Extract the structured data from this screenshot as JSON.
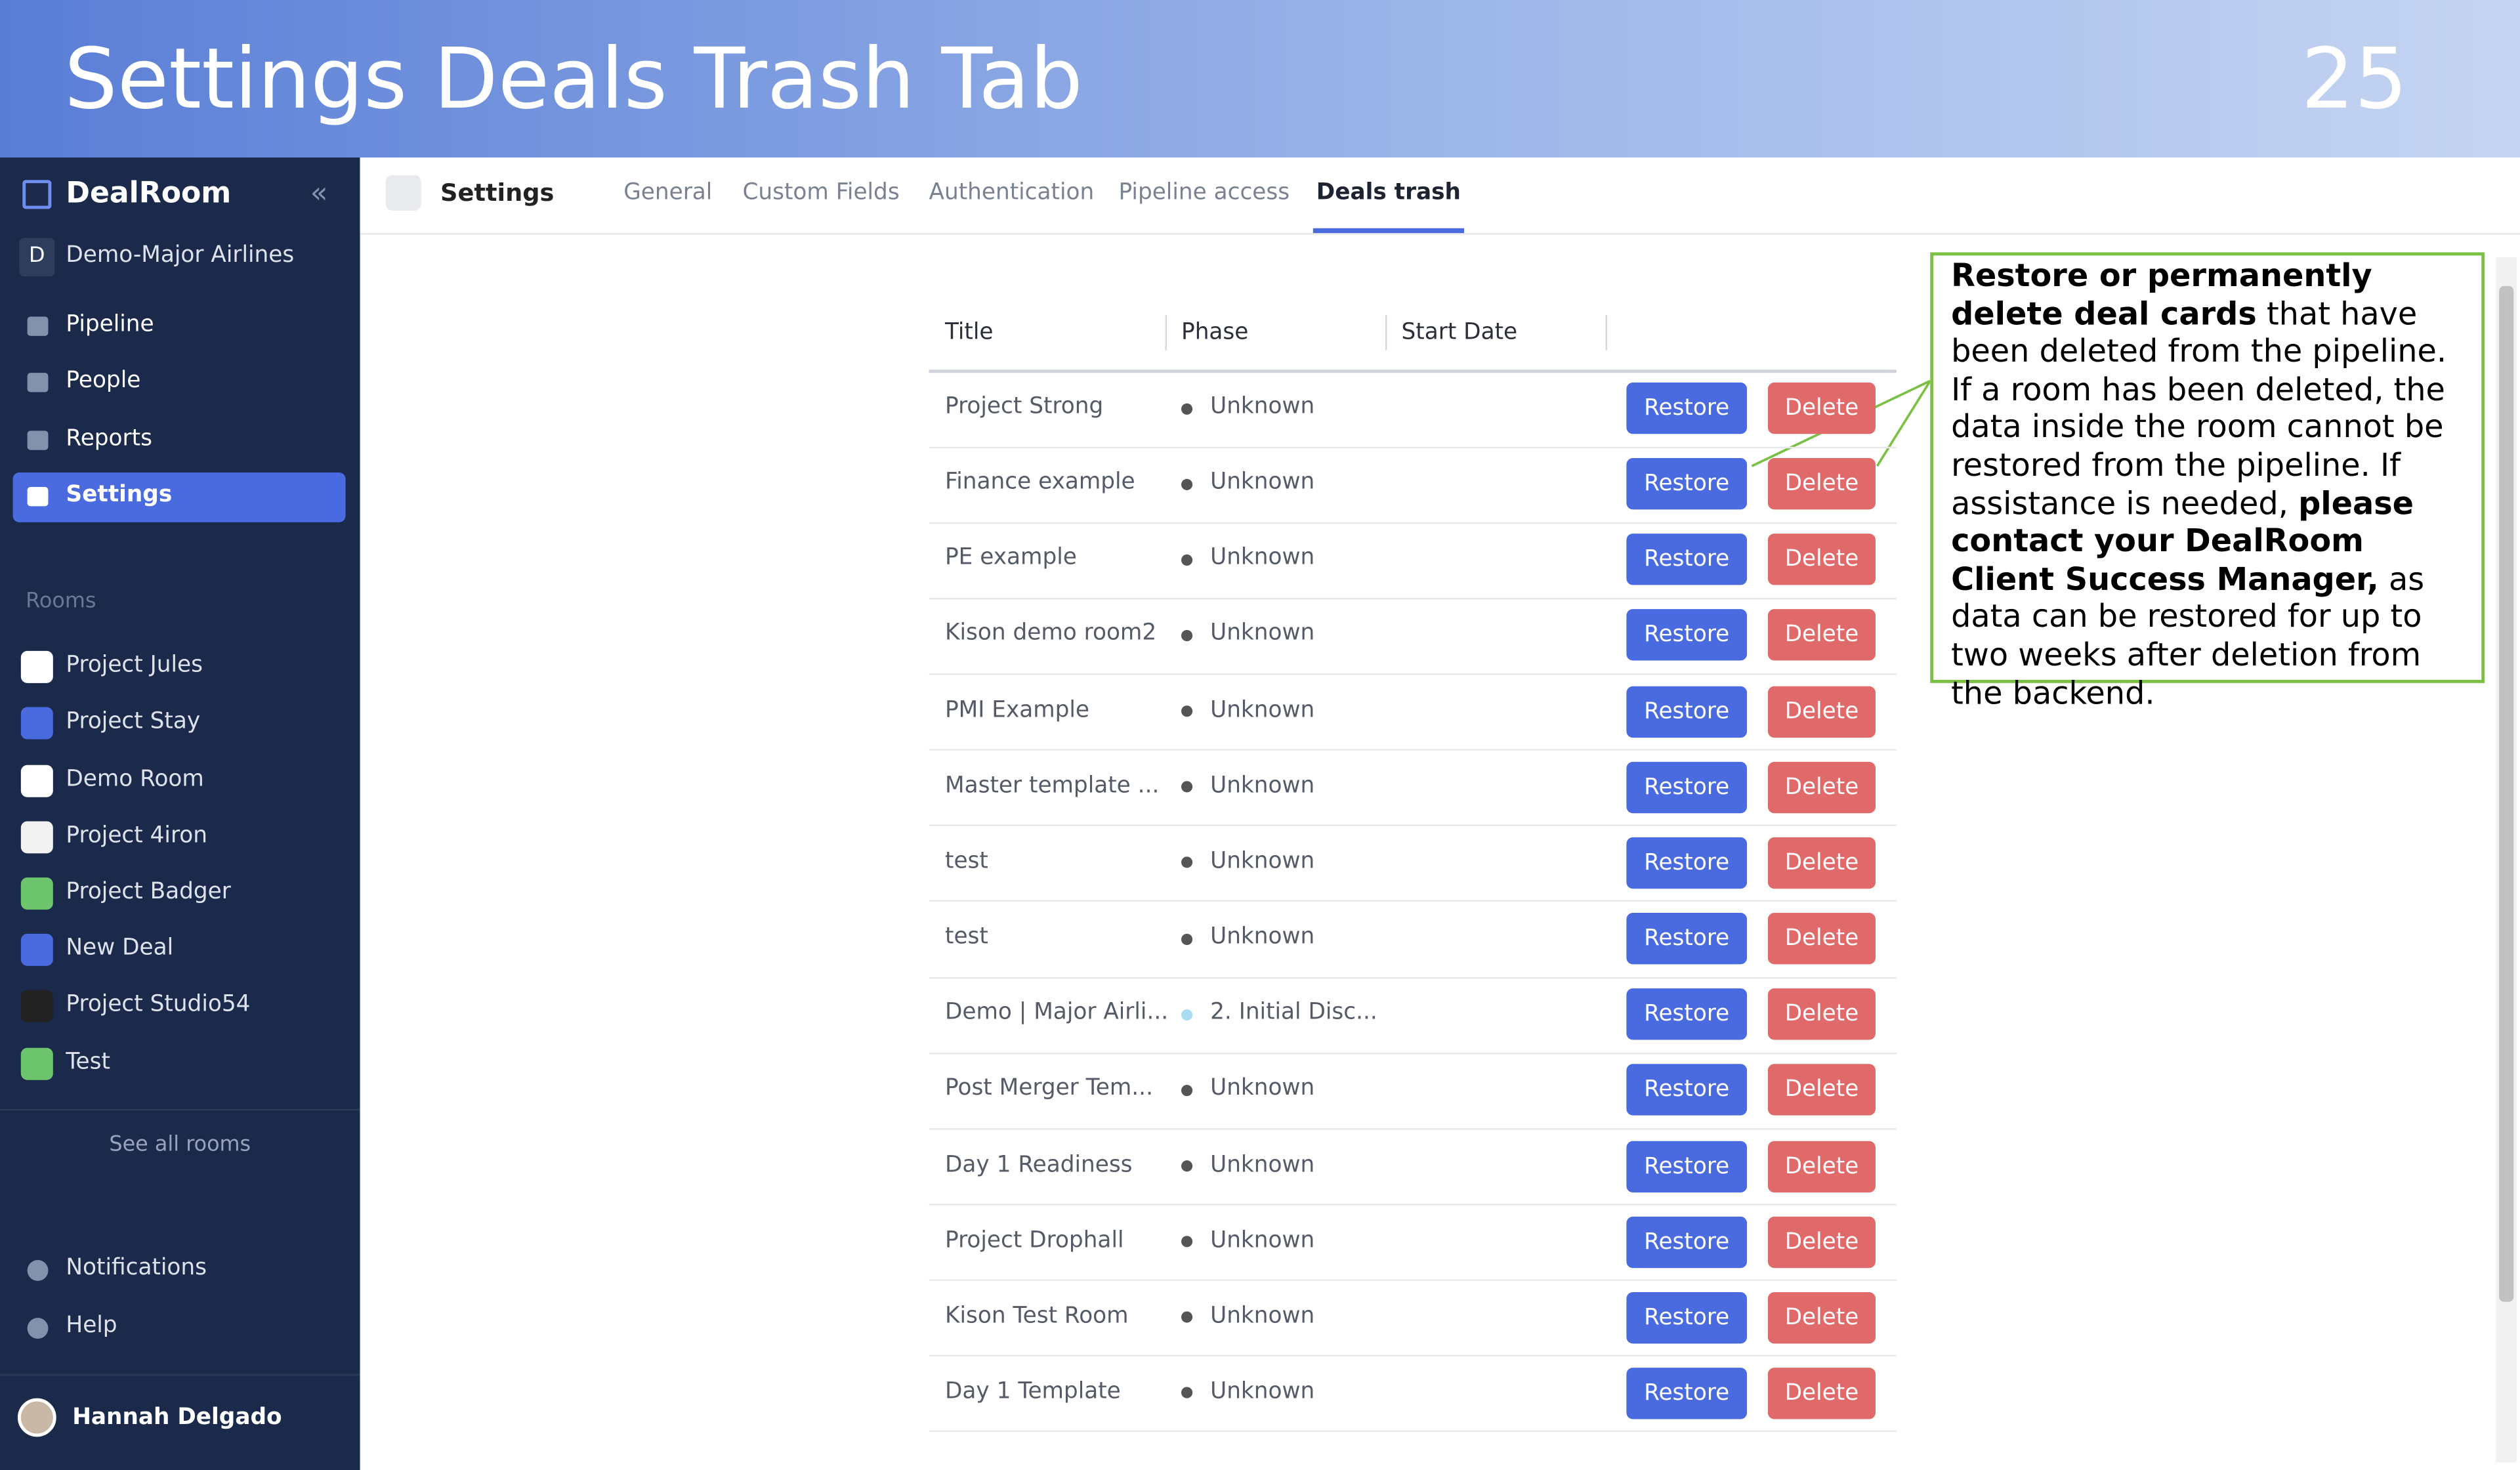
{
  "header": {
    "title": "Settings Deals Trash Tab",
    "page_number": "25"
  },
  "sidebar": {
    "brand": "DealRoom",
    "workspace_initial": "D",
    "workspace": "Demo-Major Airlines",
    "nav": [
      "Pipeline",
      "People",
      "Reports",
      "Settings"
    ],
    "active_nav": 3,
    "rooms_heading": "Rooms",
    "rooms": [
      {
        "name": "Project Jules",
        "icon": "#ffffff"
      },
      {
        "name": "Project Stay",
        "icon": "#4a6be0"
      },
      {
        "name": "Demo Room",
        "icon": "#ffffff"
      },
      {
        "name": "Project 4iron",
        "icon": "#f2f2f2"
      },
      {
        "name": "Project Badger",
        "icon": "#6cc46c"
      },
      {
        "name": "New Deal",
        "icon": "#4a6be0"
      },
      {
        "name": "Project Studio54",
        "icon": "#222222"
      },
      {
        "name": "Test",
        "icon": "#6cc46c"
      }
    ],
    "see_all": "See all rooms",
    "bottom": [
      "Notifications",
      "Help"
    ],
    "user": "Hannah Delgado"
  },
  "topbar": {
    "label": "Settings",
    "tabs": [
      "General",
      "Custom Fields",
      "Authentication",
      "Pipeline access",
      "Deals trash"
    ],
    "active_tab": 4
  },
  "table": {
    "columns": [
      "Title",
      "Phase",
      "Start Date"
    ],
    "restore": "Restore",
    "delete": "Delete",
    "rows": [
      {
        "title": "Project Strong",
        "phase": "Unknown",
        "dot": "#555555"
      },
      {
        "title": "Finance example",
        "phase": "Unknown",
        "dot": "#555555"
      },
      {
        "title": "PE example",
        "phase": "Unknown",
        "dot": "#555555"
      },
      {
        "title": "Kison demo room2",
        "phase": "Unknown",
        "dot": "#555555"
      },
      {
        "title": "PMI Example",
        "phase": "Unknown",
        "dot": "#555555"
      },
      {
        "title": "Master template ...",
        "phase": "Unknown",
        "dot": "#555555"
      },
      {
        "title": "test",
        "phase": "Unknown",
        "dot": "#555555"
      },
      {
        "title": "test",
        "phase": "Unknown",
        "dot": "#555555"
      },
      {
        "title": "Demo | Major Airli...",
        "phase": "2. Initial Disc...",
        "dot": "#a9dcf2"
      },
      {
        "title": "Post Merger Tem...",
        "phase": "Unknown",
        "dot": "#555555"
      },
      {
        "title": "Day 1 Readiness",
        "phase": "Unknown",
        "dot": "#555555"
      },
      {
        "title": "Project Drophall",
        "phase": "Unknown",
        "dot": "#555555"
      },
      {
        "title": "Kison Test Room",
        "phase": "Unknown",
        "dot": "#555555"
      },
      {
        "title": "Day 1 Template",
        "phase": "Unknown",
        "dot": "#555555"
      }
    ]
  },
  "callout": {
    "segments": [
      {
        "text": "Restore or permanently delete deal cards",
        "bold": true
      },
      {
        "text": " that have been deleted from the pipeline. If a room has been deleted, the data inside the room cannot be restored from the pipeline. If assistance is needed, ",
        "bold": false
      },
      {
        "text": "please contact your DealRoom Client Success Manager,",
        "bold": true
      },
      {
        "text": " as data can be restored for up to two weeks after deletion from the backend.",
        "bold": false
      }
    ]
  }
}
